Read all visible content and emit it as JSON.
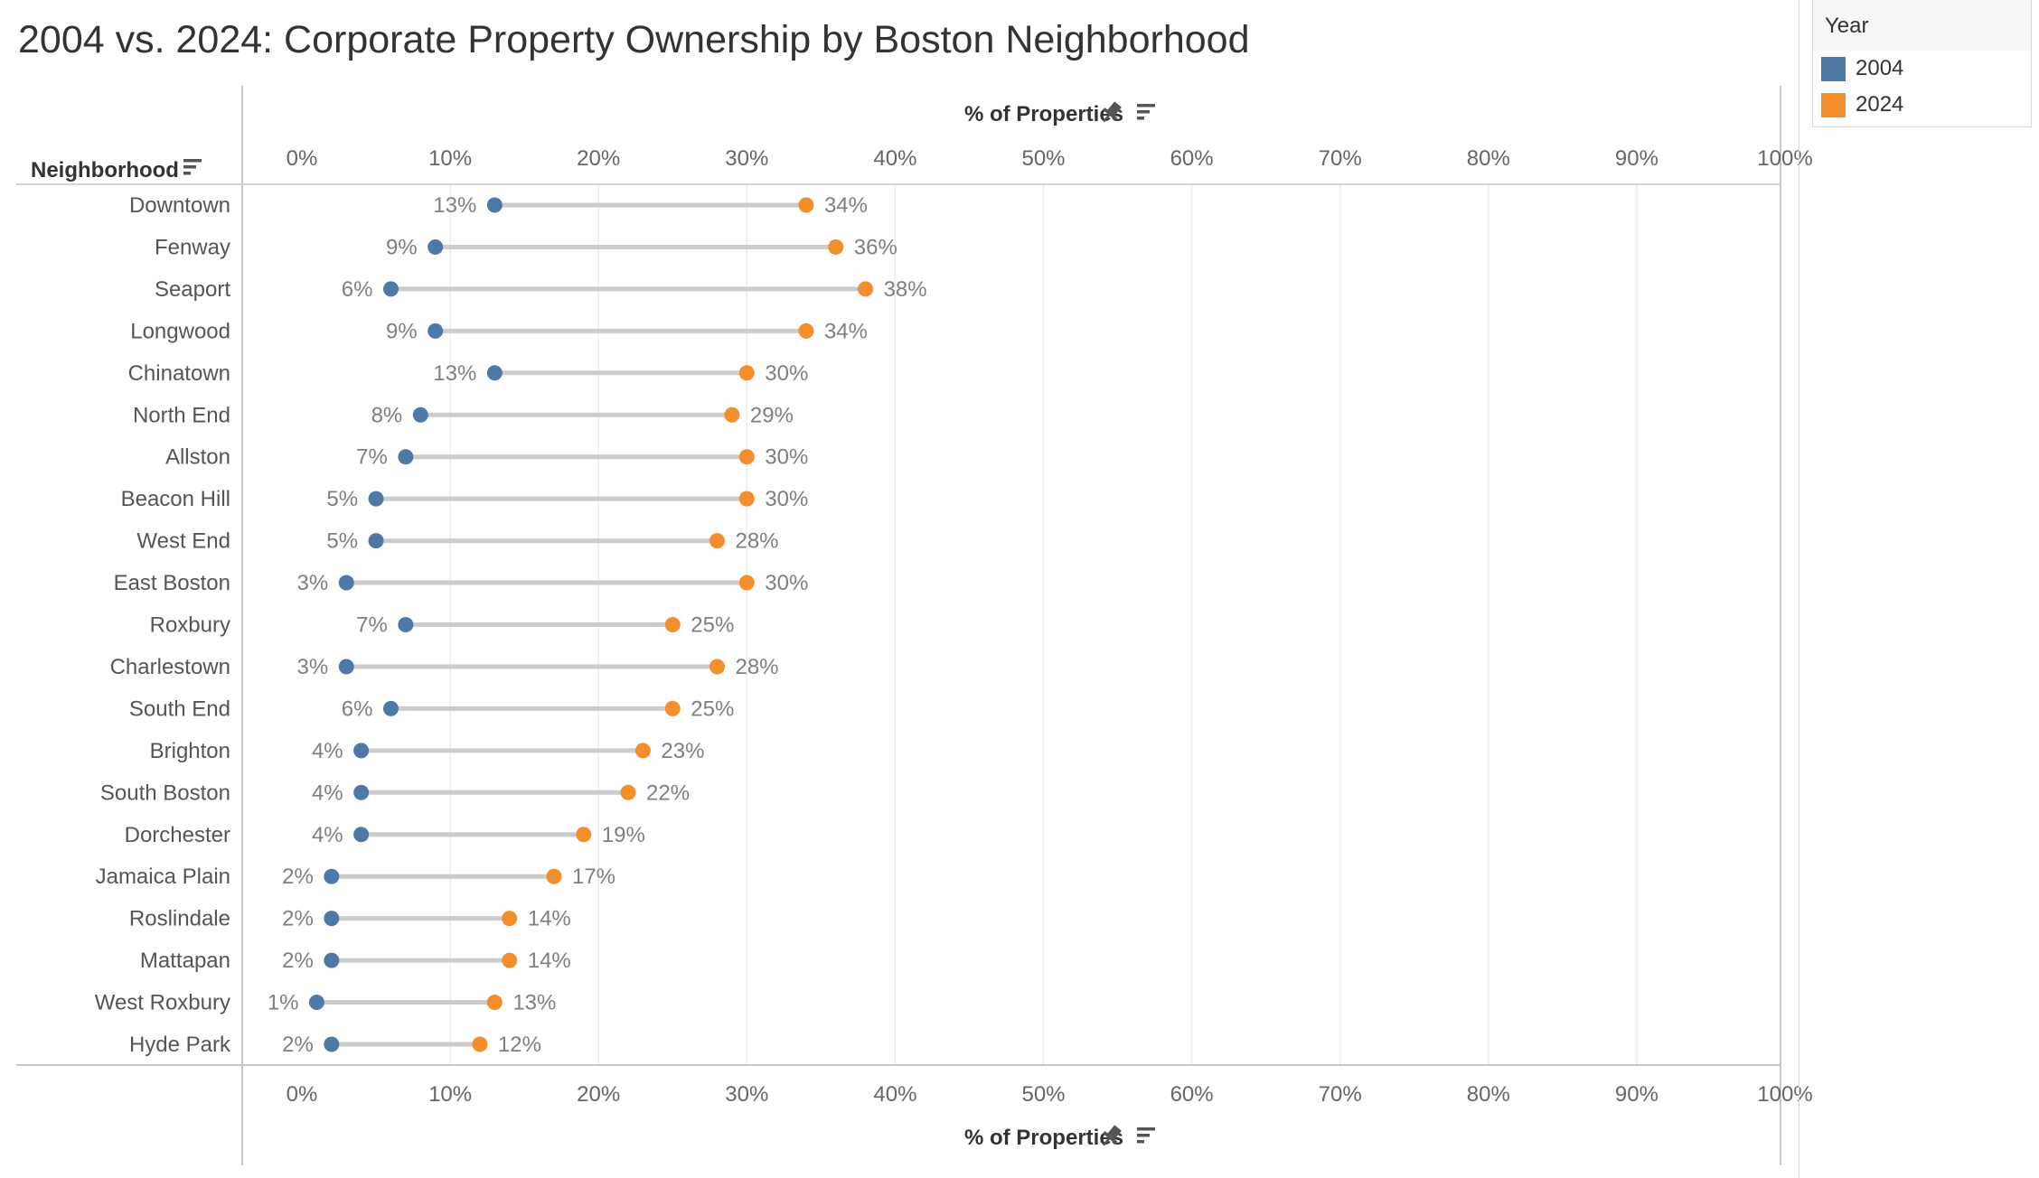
{
  "title": "2004 vs. 2024: Corporate Property Ownership by Boston Neighborhood",
  "legend": {
    "title": "Year",
    "items": [
      {
        "label": "2004",
        "color": "#4e79a7"
      },
      {
        "label": "2024",
        "color": "#f28e2b"
      }
    ]
  },
  "chart_data": {
    "type": "dumbbell",
    "title": "2004 vs. 2024: Corporate Property Ownership by Boston Neighborhood",
    "row_header": "Neighborhood",
    "xlabel": "% of Properties",
    "xlim": [
      0,
      100
    ],
    "x_ticks": [
      "0%",
      "10%",
      "20%",
      "30%",
      "40%",
      "50%",
      "60%",
      "70%",
      "80%",
      "90%",
      "100%"
    ],
    "grid": true,
    "legend_position": "top-right",
    "categories": [
      "Downtown",
      "Fenway",
      "Seaport",
      "Longwood",
      "Chinatown",
      "North End",
      "Allston",
      "Beacon Hill",
      "West End",
      "East Boston",
      "Roxbury",
      "Charlestown",
      "South End",
      "Brighton",
      "South Boston",
      "Dorchester",
      "Jamaica Plain",
      "Roslindale",
      "Mattapan",
      "West Roxbury",
      "Hyde Park"
    ],
    "series": [
      {
        "name": "2004",
        "color": "#4e79a7",
        "values": [
          13,
          9,
          6,
          9,
          13,
          8,
          7,
          5,
          5,
          3,
          7,
          3,
          6,
          4,
          4,
          4,
          2,
          2,
          2,
          1,
          2
        ]
      },
      {
        "name": "2024",
        "color": "#f28e2b",
        "values": [
          34,
          36,
          38,
          34,
          30,
          29,
          30,
          30,
          28,
          30,
          25,
          28,
          25,
          23,
          22,
          19,
          17,
          14,
          14,
          13,
          12
        ]
      }
    ]
  }
}
